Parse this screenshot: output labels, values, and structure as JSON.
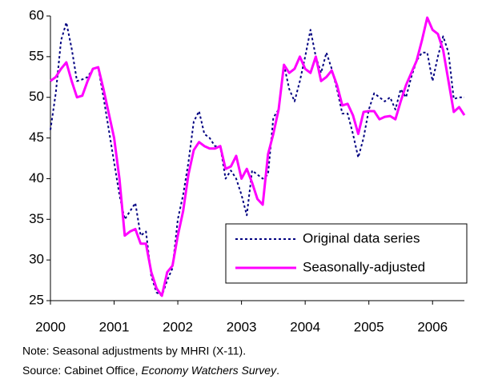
{
  "chart_data": {
    "type": "line",
    "categories": [
      "2000",
      null,
      null,
      null,
      null,
      null,
      null,
      null,
      null,
      null,
      null,
      null,
      "2001",
      null,
      null,
      null,
      null,
      null,
      null,
      null,
      null,
      null,
      null,
      null,
      "2002",
      null,
      null,
      null,
      null,
      null,
      null,
      null,
      null,
      null,
      null,
      null,
      "2003",
      null,
      null,
      null,
      null,
      null,
      null,
      null,
      null,
      null,
      null,
      null,
      "2004",
      null,
      null,
      null,
      null,
      null,
      null,
      null,
      null,
      null,
      null,
      null,
      "2005",
      null,
      null,
      null,
      null,
      null,
      null,
      null,
      null,
      null,
      null,
      null,
      "2006",
      null,
      null,
      null,
      null,
      null,
      null
    ],
    "series": [
      {
        "name": "Original data series",
        "color": "#000080",
        "dashed": true,
        "values": [
          46,
          50.5,
          57,
          59.2,
          56,
          52,
          52.2,
          52.5,
          53.5,
          53.7,
          50,
          46,
          42,
          38,
          35,
          36,
          37,
          33,
          33.5,
          28,
          26,
          25.6,
          27.5,
          29,
          35,
          38,
          42,
          47,
          48.3,
          45.5,
          45,
          44,
          44,
          40,
          41,
          40,
          38,
          35.5,
          41,
          40.5,
          40,
          40.5,
          47.5,
          48.5,
          54,
          51,
          49.5,
          52,
          55,
          58.3,
          55,
          53,
          55.5,
          53.5,
          51,
          48,
          48,
          45.5,
          42.6,
          45,
          48.5,
          50.5,
          50,
          49.5,
          50,
          48.5,
          51,
          50,
          52.5,
          54.5,
          55.5,
          55.5,
          52,
          55,
          57.5,
          55.5,
          49.8,
          50,
          50
        ]
      },
      {
        "name": "Seasonally-adjusted",
        "color": "#ff00ff",
        "dashed": false,
        "values": [
          52,
          52.5,
          53.5,
          54.3,
          52,
          50,
          50.2,
          52,
          53.5,
          53.7,
          51,
          48,
          45,
          40,
          33,
          33.5,
          33.8,
          32,
          32,
          28.5,
          26.5,
          25.6,
          28.5,
          29.3,
          33,
          36,
          40.5,
          43.5,
          44.5,
          44,
          43.7,
          43.7,
          44,
          41.2,
          41.5,
          42.8,
          40,
          41.2,
          39.5,
          37.5,
          36.8,
          43,
          45.5,
          48.5,
          54,
          53,
          53.5,
          55,
          53.5,
          53,
          55,
          52,
          52.5,
          53.3,
          51.5,
          49,
          49.2,
          47.8,
          45.5,
          48.2,
          48.3,
          48.3,
          47.3,
          47.6,
          47.7,
          47.3,
          49.5,
          51.5,
          53,
          54.5,
          57,
          59.8,
          58.3,
          57.8,
          55.8,
          52,
          48.2,
          48.8,
          47.8
        ]
      }
    ],
    "ylim": [
      25,
      60
    ],
    "yticks": [
      25,
      30,
      35,
      40,
      45,
      50,
      55,
      60
    ],
    "legend": "lower right",
    "note": "Note: Seasonal adjustments by MHRI (X-11).",
    "source_prefix": "Source: Cabinet Office,",
    "source_title": "Economy Watchers Survey",
    "source_suffix": "."
  }
}
